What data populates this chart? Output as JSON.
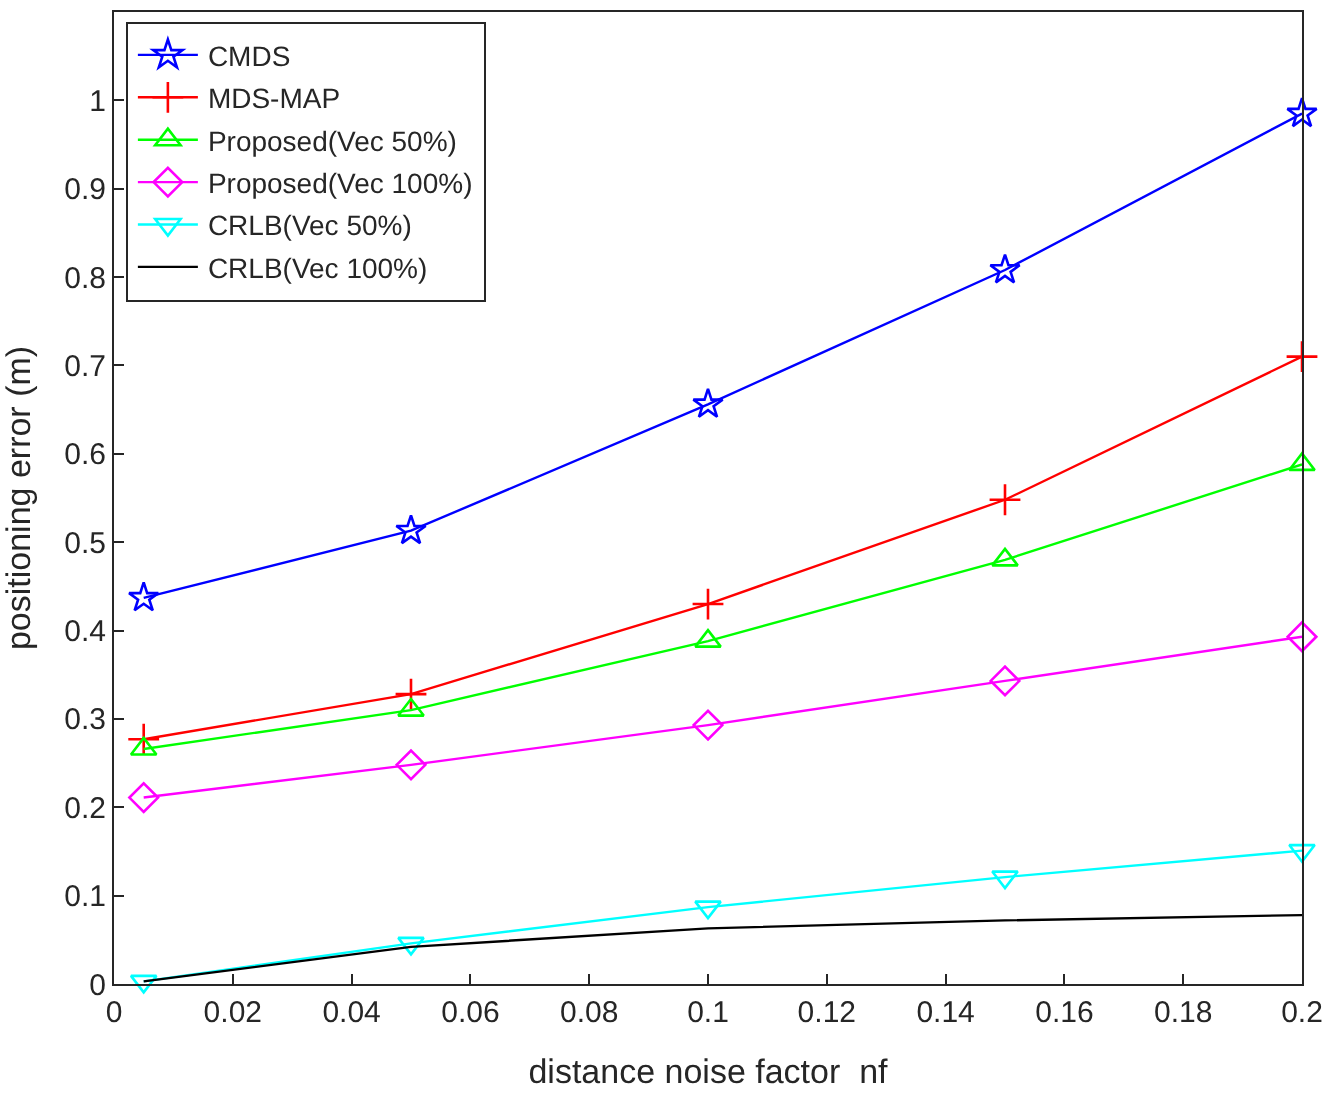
{
  "chart_data": {
    "type": "line",
    "xlabel": "distance noise factor  nf",
    "ylabel": "positioning error (m)",
    "x": [
      0.005,
      0.05,
      0.1,
      0.15,
      0.2
    ],
    "series": [
      {
        "name": "CMDS",
        "color": "#0000ff",
        "marker": "star",
        "values": [
          0.437,
          0.513,
          0.656,
          0.808,
          0.985
        ]
      },
      {
        "name": "MDS-MAP",
        "color": "#ff0000",
        "marker": "cross",
        "values": [
          0.277,
          0.328,
          0.43,
          0.548,
          0.71
        ]
      },
      {
        "name": "Proposed(Vec 50%)",
        "color": "#00ff00",
        "marker": "triangle",
        "values": [
          0.266,
          0.31,
          0.388,
          0.48,
          0.588
        ]
      },
      {
        "name": "Proposed(Vec 100%)",
        "color": "#ff00ff",
        "marker": "diamond",
        "values": [
          0.211,
          0.248,
          0.293,
          0.343,
          0.393
        ]
      },
      {
        "name": "CRLB(Vec 50%)",
        "color": "#00ffff",
        "marker": "triangle-down",
        "values": [
          0.003,
          0.046,
          0.087,
          0.121,
          0.151
        ]
      },
      {
        "name": "CRLB(Vec 100%)",
        "color": "#000000",
        "marker": "none",
        "values": [
          0.003,
          0.042,
          0.063,
          0.072,
          0.078
        ]
      }
    ],
    "xlim": [
      0,
      0.2
    ],
    "xticks": [
      0,
      0.02,
      0.04,
      0.06,
      0.08,
      0.1,
      0.12,
      0.14,
      0.16,
      0.18,
      0.2
    ],
    "ylim": [
      0,
      1.1
    ],
    "yticks": [
      0,
      0.1,
      0.2,
      0.3,
      0.4,
      0.5,
      0.6,
      0.7,
      0.8,
      0.9,
      1
    ],
    "legend": "top left",
    "line_style": "solid"
  }
}
